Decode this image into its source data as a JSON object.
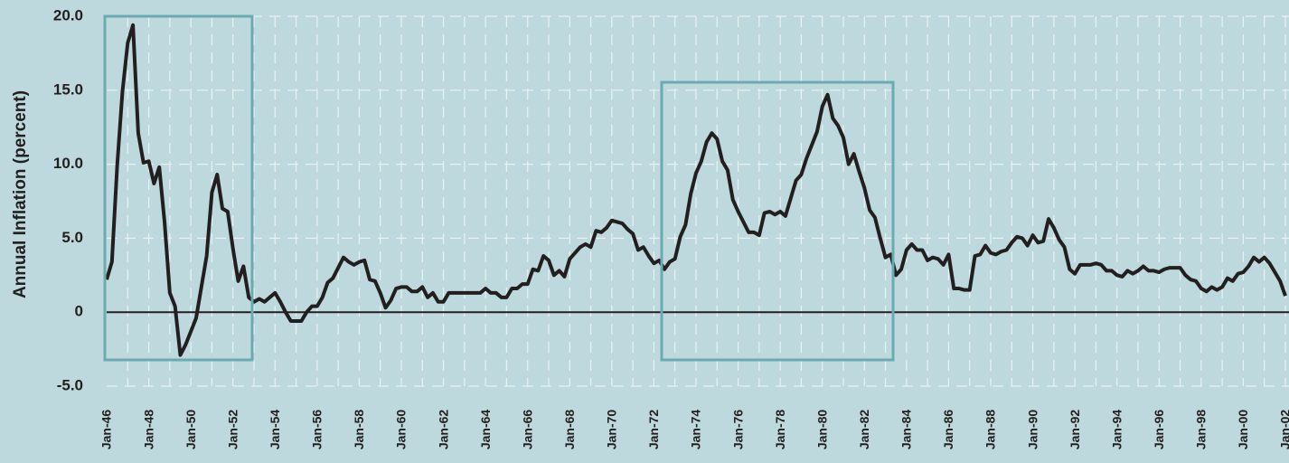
{
  "chart_data": {
    "type": "line",
    "ylabel": "Annual Inflation (percent)",
    "x": [
      "Jan-46",
      "Apr-46",
      "Jul-46",
      "Oct-46",
      "Jan-47",
      "Apr-47",
      "Jul-47",
      "Oct-47",
      "Jan-48",
      "Apr-48",
      "Jul-48",
      "Oct-48",
      "Jan-49",
      "Apr-49",
      "Jul-49",
      "Oct-49",
      "Jan-50",
      "Apr-50",
      "Jul-50",
      "Oct-50",
      "Jan-51",
      "Apr-51",
      "Jul-51",
      "Oct-51",
      "Jan-52",
      "Apr-52",
      "Jul-52",
      "Oct-52",
      "Jan-53",
      "Apr-53",
      "Jul-53",
      "Oct-53",
      "Jan-54",
      "Apr-54",
      "Jul-54",
      "Oct-54",
      "Jan-55",
      "Apr-55",
      "Jul-55",
      "Oct-55",
      "Jan-56",
      "Apr-56",
      "Jul-56",
      "Oct-56",
      "Jan-57",
      "Apr-57",
      "Jul-57",
      "Oct-57",
      "Jan-58",
      "Apr-58",
      "Jul-58",
      "Oct-58",
      "Jan-59",
      "Apr-59",
      "Jul-59",
      "Oct-59",
      "Jan-60",
      "Apr-60",
      "Jul-60",
      "Oct-60",
      "Jan-61",
      "Apr-61",
      "Jul-61",
      "Oct-61",
      "Jan-62",
      "Apr-62",
      "Jul-62",
      "Oct-62",
      "Jan-63",
      "Apr-63",
      "Jul-63",
      "Oct-63",
      "Jan-64",
      "Apr-64",
      "Jul-64",
      "Oct-64",
      "Jan-65",
      "Apr-65",
      "Jul-65",
      "Oct-65",
      "Jan-66",
      "Apr-66",
      "Jul-66",
      "Oct-66",
      "Jan-67",
      "Apr-67",
      "Jul-67",
      "Oct-67",
      "Jan-68",
      "Apr-68",
      "Jul-68",
      "Oct-68",
      "Jan-69",
      "Apr-69",
      "Jul-69",
      "Oct-69",
      "Jan-70",
      "Apr-70",
      "Jul-70",
      "Oct-70",
      "Jan-71",
      "Apr-71",
      "Jul-71",
      "Oct-71",
      "Jan-72",
      "Apr-72",
      "Jul-72",
      "Oct-72",
      "Jan-73",
      "Apr-73",
      "Jul-73",
      "Oct-73",
      "Jan-74",
      "Apr-74",
      "Jul-74",
      "Oct-74",
      "Jan-75",
      "Apr-75",
      "Jul-75",
      "Oct-75",
      "Jan-76",
      "Apr-76",
      "Jul-76",
      "Oct-76",
      "Jan-77",
      "Apr-77",
      "Jul-77",
      "Oct-77",
      "Jan-78",
      "Apr-78",
      "Jul-78",
      "Oct-78",
      "Jan-79",
      "Apr-79",
      "Jul-79",
      "Oct-79",
      "Jan-80",
      "Apr-80",
      "Jul-80",
      "Oct-80",
      "Jan-81",
      "Apr-81",
      "Jul-81",
      "Oct-81",
      "Jan-82",
      "Apr-82",
      "Jul-82",
      "Oct-82",
      "Jan-83",
      "Apr-83",
      "Jul-83",
      "Oct-83",
      "Jan-84",
      "Apr-84",
      "Jul-84",
      "Oct-84",
      "Jan-85",
      "Apr-85",
      "Jul-85",
      "Oct-85",
      "Jan-86",
      "Apr-86",
      "Jul-86",
      "Oct-86",
      "Jan-87",
      "Apr-87",
      "Jul-87",
      "Oct-87",
      "Jan-88",
      "Apr-88",
      "Jul-88",
      "Oct-88",
      "Jan-89",
      "Apr-89",
      "Jul-89",
      "Oct-89",
      "Jan-90",
      "Apr-90",
      "Jul-90",
      "Oct-90",
      "Jan-91",
      "Apr-91",
      "Jul-91",
      "Oct-91",
      "Jan-92",
      "Apr-92",
      "Jul-92",
      "Oct-92",
      "Jan-93",
      "Apr-93",
      "Jul-93",
      "Oct-93",
      "Jan-94",
      "Apr-94",
      "Jul-94",
      "Oct-94",
      "Jan-95",
      "Apr-95",
      "Jul-95",
      "Oct-95",
      "Jan-96",
      "Apr-96",
      "Jul-96",
      "Oct-96",
      "Jan-97",
      "Apr-97",
      "Jul-97",
      "Oct-97",
      "Jan-98",
      "Apr-98",
      "Jul-98",
      "Oct-98",
      "Jan-99",
      "Apr-99",
      "Jul-99",
      "Oct-99",
      "Jan-00",
      "Apr-00",
      "Jul-00",
      "Oct-00",
      "Jan-01",
      "Apr-01",
      "Jul-01",
      "Oct-01",
      "Jan-02"
    ],
    "series": [
      {
        "color": "#231f20",
        "values": [
          2.2,
          3.4,
          9.9,
          14.9,
          18.2,
          19.4,
          12.1,
          10.1,
          10.2,
          8.7,
          9.8,
          6.1,
          1.3,
          0.4,
          -2.9,
          -2.2,
          -1.3,
          -0.4,
          1.7,
          3.8,
          8.1,
          9.3,
          7.0,
          6.8,
          4.3,
          2.1,
          3.1,
          1.0,
          0.7,
          0.9,
          0.7,
          1.0,
          1.3,
          0.7,
          0.0,
          -0.6,
          -0.6,
          -0.6,
          0.0,
          0.4,
          0.4,
          1.0,
          2.0,
          2.3,
          3.0,
          3.7,
          3.4,
          3.2,
          3.4,
          3.5,
          2.2,
          2.1,
          1.3,
          0.3,
          0.8,
          1.6,
          1.7,
          1.7,
          1.4,
          1.4,
          1.7,
          1.0,
          1.3,
          0.7,
          0.7,
          1.3,
          1.3,
          1.3,
          1.3,
          1.3,
          1.3,
          1.3,
          1.6,
          1.3,
          1.3,
          1.0,
          1.0,
          1.6,
          1.6,
          1.9,
          1.9,
          2.9,
          2.8,
          3.8,
          3.5,
          2.5,
          2.8,
          2.4,
          3.6,
          4.0,
          4.4,
          4.6,
          4.4,
          5.5,
          5.4,
          5.7,
          6.2,
          6.1,
          6.0,
          5.6,
          5.3,
          4.2,
          4.4,
          3.8,
          3.3,
          3.5,
          2.9,
          3.4,
          3.6,
          5.1,
          5.9,
          8.0,
          9.4,
          10.2,
          11.5,
          12.1,
          11.7,
          10.2,
          9.6,
          7.6,
          6.8,
          6.1,
          5.4,
          5.4,
          5.2,
          6.7,
          6.8,
          6.6,
          6.8,
          6.5,
          7.7,
          8.9,
          9.3,
          10.4,
          11.3,
          12.2,
          13.9,
          14.7,
          13.1,
          12.6,
          11.8,
          10.0,
          10.7,
          9.5,
          8.4,
          6.9,
          6.4,
          5.0,
          3.7,
          3.9,
          2.5,
          2.9,
          4.2,
          4.6,
          4.2,
          4.2,
          3.5,
          3.7,
          3.6,
          3.2,
          3.9,
          1.6,
          1.6,
          1.5,
          1.5,
          3.8,
          3.9,
          4.5,
          4.0,
          3.9,
          4.1,
          4.2,
          4.7,
          5.1,
          5.0,
          4.5,
          5.2,
          4.7,
          4.8,
          6.3,
          5.7,
          4.9,
          4.4,
          2.9,
          2.6,
          3.2,
          3.2,
          3.2,
          3.3,
          3.2,
          2.8,
          2.8,
          2.5,
          2.4,
          2.8,
          2.6,
          2.8,
          3.1,
          2.8,
          2.8,
          2.7,
          2.9,
          3.0,
          3.0,
          3.0,
          2.5,
          2.2,
          2.1,
          1.6,
          1.4,
          1.7,
          1.5,
          1.7,
          2.3,
          2.1,
          2.6,
          2.7,
          3.1,
          3.7,
          3.4,
          3.7,
          3.3,
          2.7,
          2.1,
          1.1
        ]
      }
    ],
    "xticks": [
      "Jan-46",
      "Jan-48",
      "Jan-50",
      "Jan-52",
      "Jan-54",
      "Jan-56",
      "Jan-58",
      "Jan-60",
      "Jan-62",
      "Jan-64",
      "Jan-66",
      "Jan-68",
      "Jan-70",
      "Jan-72",
      "Jan-74",
      "Jan-76",
      "Jan-78",
      "Jan-80",
      "Jan-82",
      "Jan-84",
      "Jan-86",
      "Jan-88",
      "Jan-90",
      "Jan-92",
      "Jan-94",
      "Jan-96",
      "Jan-98",
      "Jan-00",
      "Jan-02"
    ],
    "ylim": [
      -5,
      20
    ],
    "yticks": [
      {
        "value": 20,
        "label": "20.0"
      },
      {
        "value": 15,
        "label": "15.0"
      },
      {
        "value": 10,
        "label": "10.0"
      },
      {
        "value": 5,
        "label": "5.0"
      },
      0,
      {
        "value": -5,
        "label": "-5.0"
      }
    ],
    "grid": true
  }
}
